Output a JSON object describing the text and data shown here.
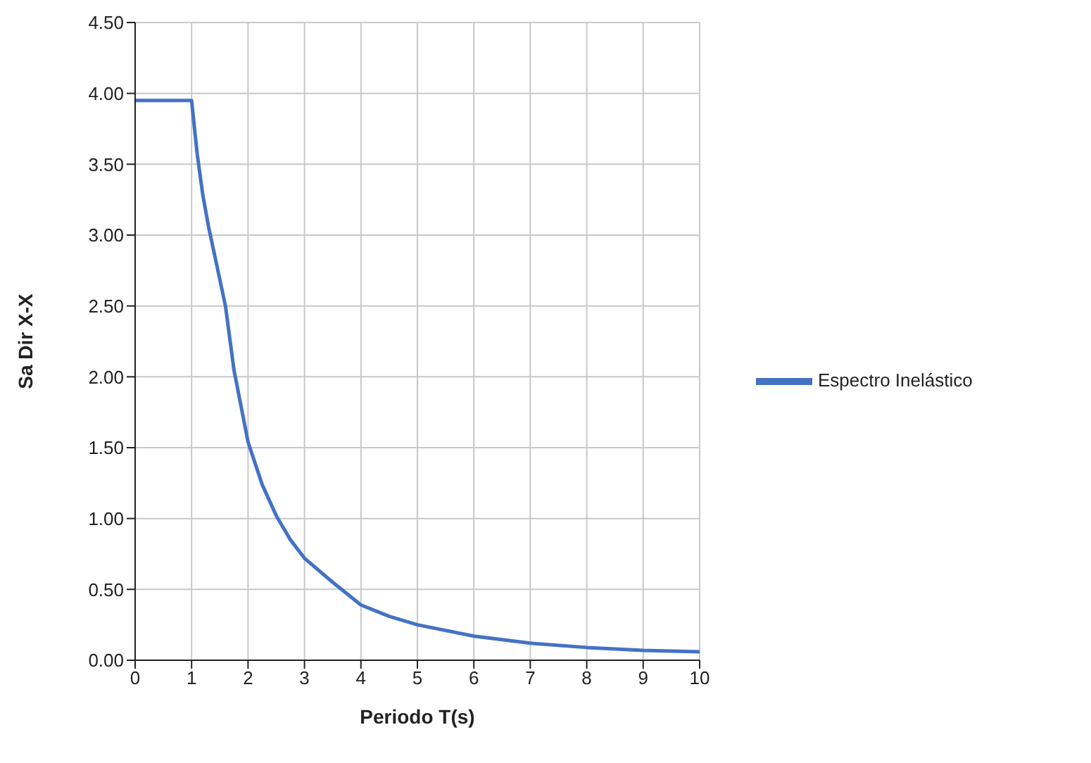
{
  "chart_data": {
    "type": "line",
    "xlabel": "Periodo T(s)",
    "ylabel": "Sa Dir X-X",
    "series": [
      {
        "name": "Espectro Inelástico",
        "color": "#4472c4",
        "x": [
          0,
          1,
          1.1,
          1.2,
          1.3,
          1.45,
          1.6,
          1.75,
          2,
          2.25,
          2.5,
          2.75,
          3,
          3.5,
          4,
          4.5,
          5,
          6,
          7,
          8,
          9,
          10
        ],
        "values": [
          3.95,
          3.95,
          3.57,
          3.28,
          3.06,
          2.78,
          2.5,
          2.05,
          1.54,
          1.24,
          1.02,
          0.85,
          0.72,
          0.55,
          0.39,
          0.31,
          0.25,
          0.17,
          0.12,
          0.09,
          0.07,
          0.06
        ]
      }
    ],
    "xlim": [
      0,
      10
    ],
    "xticks": [
      0,
      1,
      2,
      3,
      4,
      5,
      6,
      7,
      8,
      9,
      10
    ],
    "ylim": [
      0,
      4.5
    ],
    "yticks": [
      {
        "value": 0,
        "label": "0.00"
      },
      {
        "value": 0.5,
        "label": "0.50"
      },
      {
        "value": 1,
        "label": "1.00"
      },
      {
        "value": 1.5,
        "label": "1.50"
      },
      {
        "value": 2,
        "label": "2.00"
      },
      {
        "value": 2.5,
        "label": "2.50"
      },
      {
        "value": 3,
        "label": "3.00"
      },
      {
        "value": 3.5,
        "label": "3.50"
      },
      {
        "value": 4,
        "label": "4.00"
      },
      {
        "value": 4.5,
        "label": "4.50"
      }
    ],
    "grid": true,
    "legend": "right",
    "marker": "none",
    "line_style": "solid"
  }
}
